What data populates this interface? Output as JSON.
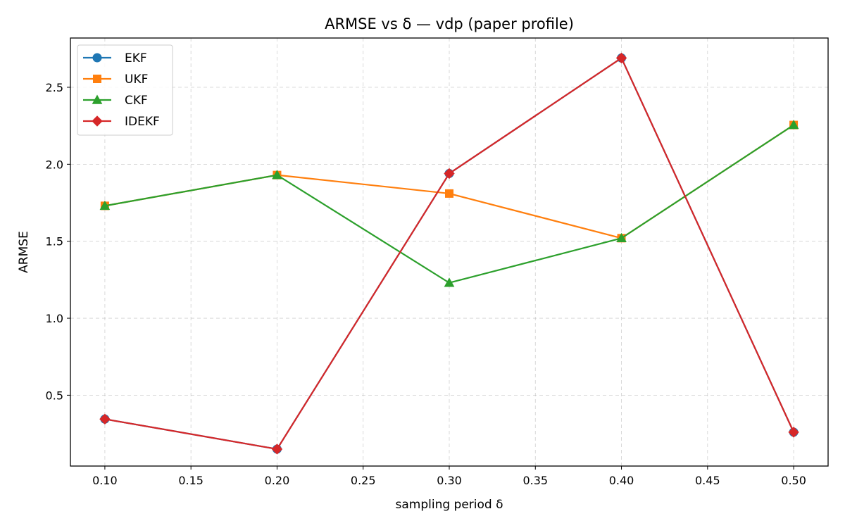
{
  "chart_data": {
    "type": "line",
    "title": "ARMSE vs δ — vdp (paper profile)",
    "xlabel": "sampling period δ",
    "ylabel": "ARMSE",
    "x": [
      0.1,
      0.2,
      0.3,
      0.4,
      0.5
    ],
    "xlim": [
      0.08,
      0.52
    ],
    "ylim": [
      0.04,
      2.82
    ],
    "xticks": [
      0.1,
      0.15,
      0.2,
      0.25,
      0.3,
      0.35,
      0.4,
      0.45,
      0.5
    ],
    "xtick_labels": [
      "0.10",
      "0.15",
      "0.20",
      "0.25",
      "0.30",
      "0.35",
      "0.40",
      "0.45",
      "0.50"
    ],
    "yticks": [
      0.5,
      1.0,
      1.5,
      2.0,
      2.5
    ],
    "ytick_labels": [
      "0.5",
      "1.0",
      "1.5",
      "2.0",
      "2.5"
    ],
    "grid": true,
    "legend_position": "top-left",
    "series": [
      {
        "name": "EKF",
        "color": "#1f77b4",
        "marker": "circle",
        "values": [
          0.345,
          0.15,
          1.94,
          2.69,
          0.26
        ]
      },
      {
        "name": "UKF",
        "color": "#ff7f0e",
        "marker": "square",
        "values": [
          1.73,
          1.93,
          1.81,
          1.52,
          2.255
        ]
      },
      {
        "name": "CKF",
        "color": "#2ca02c",
        "marker": "triangle",
        "values": [
          1.73,
          1.93,
          1.23,
          1.52,
          2.255
        ]
      },
      {
        "name": "IDEKF",
        "color": "#d62728",
        "marker": "diamond",
        "values": [
          0.345,
          0.15,
          1.94,
          2.69,
          0.26
        ]
      }
    ]
  }
}
